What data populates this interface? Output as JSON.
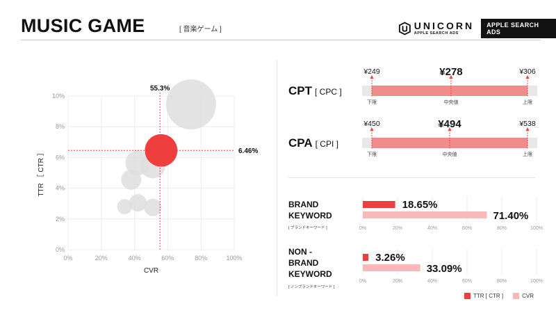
{
  "header": {
    "title": "MUSIC GAME",
    "subtitle": "[ 音楽ゲーム ]",
    "brand_name": "UNICORN",
    "brand_sub": "APPLE SEARCH ADS",
    "brand_badge": "APPLE SEARCH ADS"
  },
  "colors": {
    "accent_red": "#ee3e3e",
    "bar_red": "#f08c8c",
    "light_pink": "#f8b9b9",
    "bubble_grey": "#dedede",
    "track_grey": "#e8e8e8"
  },
  "chart_data": [
    {
      "type": "scatter",
      "variant": "bubble",
      "xlabel": "CVR",
      "ylabel": "TTR ［ CTR ］",
      "xlim": [
        0,
        100
      ],
      "ylim": [
        0,
        10
      ],
      "xticks": [
        "0%",
        "20%",
        "40%",
        "60%",
        "80%",
        "100%"
      ],
      "yticks": [
        "0%",
        "2%",
        "4%",
        "6%",
        "8%",
        "10%"
      ],
      "grid": true,
      "points": [
        {
          "x": 74,
          "y": 9.45,
          "size": 10,
          "highlight": false
        },
        {
          "x": 56,
          "y": 6.46,
          "size": 6.5,
          "highlight": true
        },
        {
          "x": 42,
          "y": 5.65,
          "size": 5,
          "highlight": false
        },
        {
          "x": 51,
          "y": 5.45,
          "size": 5,
          "highlight": false
        },
        {
          "x": 38,
          "y": 4.55,
          "size": 4,
          "highlight": false
        },
        {
          "x": 42,
          "y": 3.05,
          "size": 3.5,
          "highlight": false
        },
        {
          "x": 34,
          "y": 2.8,
          "size": 3,
          "highlight": false
        },
        {
          "x": 51,
          "y": 2.75,
          "size": 3.5,
          "highlight": false
        }
      ],
      "reference_x": {
        "value": 55.3,
        "label": "55.3%"
      },
      "reference_y": {
        "value": 6.46,
        "label": "6.46%"
      }
    },
    {
      "type": "range",
      "metric": "CPT",
      "metric_paren": "[ CPC ]",
      "min": 249,
      "median": 278,
      "max": 306,
      "min_label": "¥249",
      "median_label": "¥278",
      "max_label": "¥306",
      "tick_labels": [
        "下限",
        "中央値",
        "上限"
      ]
    },
    {
      "type": "range",
      "metric": "CPA",
      "metric_paren": "[ CPI ]",
      "min": 450,
      "median": 494,
      "max": 538,
      "min_label": "¥450",
      "median_label": "¥494",
      "max_label": "¥538",
      "tick_labels": [
        "下限",
        "中央値",
        "上限"
      ]
    },
    {
      "type": "bar",
      "orientation": "horizontal",
      "group": "BRAND\nKEYWORD",
      "group_note": "[ ブランドキーワード ]",
      "xlim": [
        0,
        100
      ],
      "xticks": [
        "0%",
        "20%",
        "40%",
        "60%",
        "80%",
        "100%"
      ],
      "series": [
        {
          "name": "TTR [ CTR ]",
          "value": 18.65,
          "label": "18.65%"
        },
        {
          "name": "CVR",
          "value": 71.4,
          "label": "71.40%"
        }
      ]
    },
    {
      "type": "bar",
      "orientation": "horizontal",
      "group": "NON -\nBRAND\nKEYWORD",
      "group_note": "[ ノンブランドキーワード ]",
      "xlim": [
        0,
        100
      ],
      "xticks": [
        "0%",
        "20%",
        "40%",
        "60%",
        "80%",
        "100%"
      ],
      "series": [
        {
          "name": "TTR [ CTR ]",
          "value": 3.26,
          "label": "3.26%"
        },
        {
          "name": "CVR",
          "value": 33.09,
          "label": "33.09%"
        }
      ]
    }
  ],
  "legend": {
    "ttr_label": "TTR [ CTR ]",
    "cvr_label": "CVR"
  }
}
